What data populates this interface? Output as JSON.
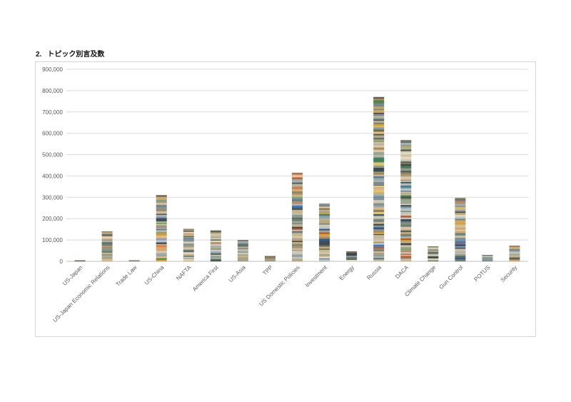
{
  "heading": {
    "number": "2.",
    "title": "トピック別言及数"
  },
  "chart_data": {
    "type": "bar",
    "stacked": true,
    "title": "トピック別言及数",
    "xlabel": "",
    "ylabel": "",
    "ylim": [
      0,
      900000
    ],
    "yticks": [
      0,
      100000,
      200000,
      300000,
      400000,
      500000,
      600000,
      700000,
      800000,
      900000
    ],
    "ytick_labels": [
      "0",
      "100,000",
      "200,000",
      "300,000",
      "400,000",
      "500,000",
      "600,000",
      "700,000",
      "800,000",
      "900,000"
    ],
    "grid": true,
    "legend": "none",
    "categories": [
      "US-Japan",
      "US-Japan Economic Relations",
      "Trade Law",
      "US-China",
      "NAFTA",
      "America First",
      "US-Asia",
      "TPP",
      "US Domestic Policies",
      "Investment",
      "Energy",
      "Russia",
      "DACA",
      "Climate Change",
      "Gun Control",
      "POTUS",
      "Security"
    ],
    "values": [
      5000,
      140000,
      5000,
      310000,
      152000,
      145000,
      100000,
      25000,
      415000,
      270000,
      47000,
      770000,
      568000,
      70000,
      297000,
      30000,
      73000
    ]
  },
  "palette": [
    "#b9c4c7",
    "#8a9a8f",
    "#d9c9a8",
    "#6f7f6a",
    "#c7b48a",
    "#9fb2b8",
    "#e2d7c0",
    "#4f5a4d",
    "#a3a28c",
    "#7e8f96",
    "#cbbf9f",
    "#5d6b64",
    "#e0b98a",
    "#87a07a",
    "#3f4a52",
    "#c2a86f",
    "#9aa6a0",
    "#d8a36b",
    "#6a8a9a",
    "#b08a5a"
  ],
  "accent_palette": [
    "#3e7ab8",
    "#d9a038",
    "#e07840",
    "#3a8a4a",
    "#f0c040",
    "#2a5a90",
    "#c05a30",
    "#7aa0c8"
  ]
}
